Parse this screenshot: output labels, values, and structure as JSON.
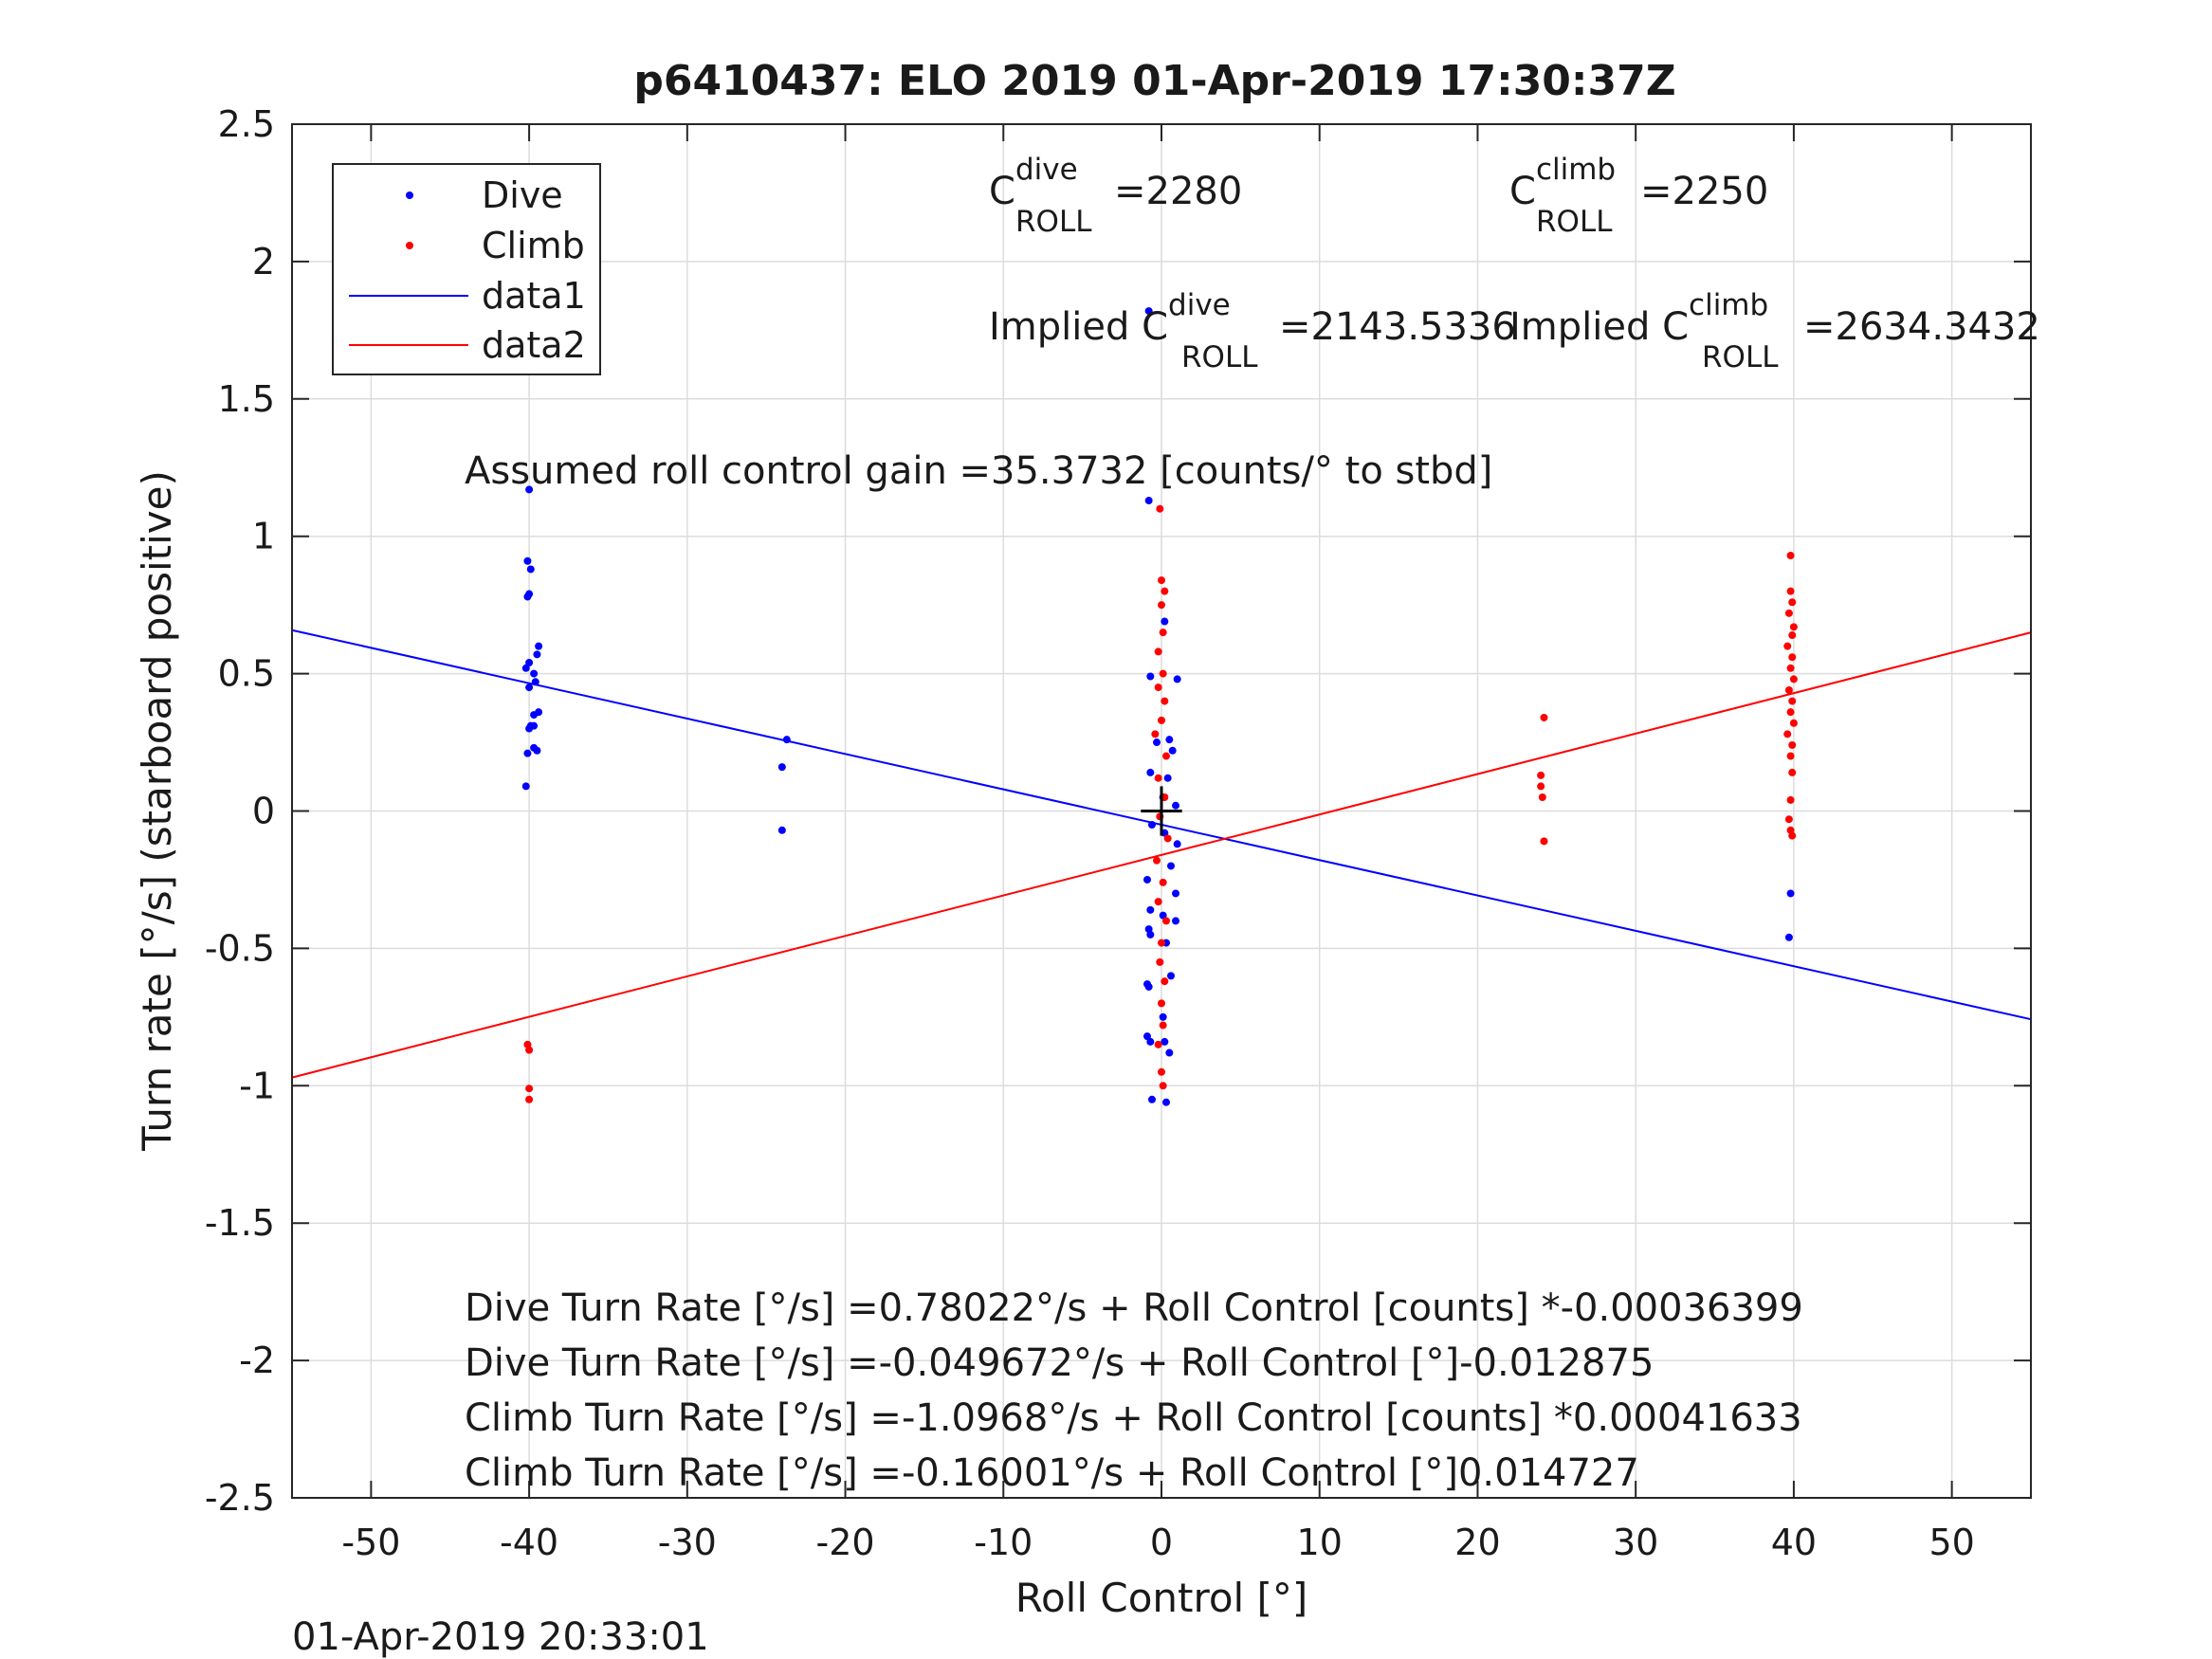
{
  "chart_data": {
    "type": "scatter",
    "title": "p6410437: ELO 2019 01-Apr-2019 17:30:37Z",
    "xlabel": "Roll Control [°]",
    "ylabel": "Turn rate [°/s] (starboard positive)",
    "xlim": [
      -55,
      55
    ],
    "ylim": [
      -2.5,
      2.5
    ],
    "x_ticks": [
      -50,
      -40,
      -30,
      -20,
      -10,
      0,
      10,
      20,
      30,
      40,
      50
    ],
    "y_ticks": [
      -2.5,
      -2,
      -1.5,
      -1,
      -0.5,
      0,
      0.5,
      1,
      1.5,
      2,
      2.5
    ],
    "grid": true,
    "legend_position": "top-left",
    "timestamp": "01-Apr-2019 20:33:01",
    "colors": {
      "dive": "#0000ff",
      "climb": "#ff0000",
      "axis": "#262626",
      "grid": "#dcdcdc",
      "marker": "#000000"
    },
    "series": [
      {
        "name": "Dive",
        "style": "points",
        "points": [
          [
            -40.0,
            1.17
          ],
          [
            -40.1,
            0.91
          ],
          [
            -39.9,
            0.88
          ],
          [
            -40.0,
            0.79
          ],
          [
            -40.1,
            0.78
          ],
          [
            -39.4,
            0.6
          ],
          [
            -39.5,
            0.57
          ],
          [
            -40.0,
            0.54
          ],
          [
            -40.2,
            0.52
          ],
          [
            -39.7,
            0.5
          ],
          [
            -39.6,
            0.47
          ],
          [
            -40.0,
            0.45
          ],
          [
            -39.4,
            0.36
          ],
          [
            -39.7,
            0.35
          ],
          [
            -39.9,
            0.31
          ],
          [
            -39.7,
            0.31
          ],
          [
            -40.0,
            0.3
          ],
          [
            -39.5,
            0.22
          ],
          [
            -40.1,
            0.21
          ],
          [
            -39.7,
            0.23
          ],
          [
            -40.2,
            0.09
          ],
          [
            -23.7,
            0.26
          ],
          [
            -24.0,
            0.16
          ],
          [
            -24.0,
            -0.07
          ],
          [
            -0.8,
            1.82
          ],
          [
            -0.8,
            1.13
          ],
          [
            0.2,
            0.69
          ],
          [
            -0.7,
            0.49
          ],
          [
            1.0,
            0.48
          ],
          [
            -0.3,
            0.25
          ],
          [
            0.5,
            0.26
          ],
          [
            0.7,
            0.22
          ],
          [
            -0.7,
            0.14
          ],
          [
            0.4,
            0.12
          ],
          [
            0.1,
            0.05
          ],
          [
            0.9,
            0.02
          ],
          [
            -0.6,
            -0.05
          ],
          [
            0.2,
            -0.08
          ],
          [
            1.0,
            -0.12
          ],
          [
            -0.9,
            -0.25
          ],
          [
            0.6,
            -0.2
          ],
          [
            0.9,
            -0.3
          ],
          [
            -0.7,
            -0.36
          ],
          [
            0.1,
            -0.38
          ],
          [
            -0.8,
            -0.43
          ],
          [
            -0.7,
            -0.45
          ],
          [
            0.9,
            -0.4
          ],
          [
            0.3,
            -0.48
          ],
          [
            -0.9,
            -0.63
          ],
          [
            -0.8,
            -0.64
          ],
          [
            0.6,
            -0.6
          ],
          [
            0.1,
            -0.75
          ],
          [
            -0.9,
            -0.82
          ],
          [
            -0.7,
            -0.84
          ],
          [
            0.2,
            -0.84
          ],
          [
            0.5,
            -0.88
          ],
          [
            -0.6,
            -1.05
          ],
          [
            0.3,
            -1.06
          ],
          [
            39.8,
            -0.3
          ],
          [
            39.7,
            -0.46
          ]
        ]
      },
      {
        "name": "Climb",
        "style": "points",
        "points": [
          [
            -40.1,
            -0.85
          ],
          [
            -40.0,
            -0.87
          ],
          [
            -40.0,
            -1.01
          ],
          [
            -40.0,
            -1.05
          ],
          [
            24.2,
            0.34
          ],
          [
            24.0,
            0.13
          ],
          [
            24.0,
            0.09
          ],
          [
            24.1,
            0.05
          ],
          [
            24.2,
            -0.11
          ],
          [
            -0.1,
            1.1
          ],
          [
            0.0,
            0.84
          ],
          [
            0.2,
            0.8
          ],
          [
            0.0,
            0.75
          ],
          [
            0.1,
            0.65
          ],
          [
            -0.2,
            0.58
          ],
          [
            0.1,
            0.5
          ],
          [
            -0.2,
            0.45
          ],
          [
            0.2,
            0.4
          ],
          [
            0.0,
            0.33
          ],
          [
            -0.4,
            0.28
          ],
          [
            0.3,
            0.2
          ],
          [
            -0.2,
            0.12
          ],
          [
            0.2,
            0.05
          ],
          [
            -0.1,
            -0.02
          ],
          [
            0.4,
            -0.1
          ],
          [
            -0.3,
            -0.18
          ],
          [
            0.1,
            -0.26
          ],
          [
            -0.2,
            -0.33
          ],
          [
            0.3,
            -0.4
          ],
          [
            0.0,
            -0.48
          ],
          [
            -0.1,
            -0.55
          ],
          [
            0.2,
            -0.62
          ],
          [
            0.0,
            -0.7
          ],
          [
            0.1,
            -0.78
          ],
          [
            -0.2,
            -0.85
          ],
          [
            0.0,
            -0.95
          ],
          [
            0.1,
            -1.0
          ],
          [
            39.8,
            0.93
          ],
          [
            39.8,
            0.8
          ],
          [
            39.9,
            0.76
          ],
          [
            39.7,
            0.72
          ],
          [
            40.0,
            0.67
          ],
          [
            39.9,
            0.64
          ],
          [
            39.6,
            0.6
          ],
          [
            39.9,
            0.56
          ],
          [
            39.8,
            0.52
          ],
          [
            40.0,
            0.48
          ],
          [
            39.7,
            0.44
          ],
          [
            39.9,
            0.4
          ],
          [
            39.8,
            0.36
          ],
          [
            40.0,
            0.32
          ],
          [
            39.6,
            0.28
          ],
          [
            39.9,
            0.24
          ],
          [
            39.8,
            0.2
          ],
          [
            39.9,
            0.14
          ],
          [
            39.8,
            0.04
          ],
          [
            39.7,
            -0.03
          ],
          [
            39.8,
            -0.07
          ],
          [
            39.9,
            -0.09
          ]
        ]
      },
      {
        "name": "data1",
        "style": "line",
        "points": [
          [
            -55,
            0.6583
          ],
          [
            55,
            -0.758
          ]
        ]
      },
      {
        "name": "data2",
        "style": "line",
        "points": [
          [
            -55,
            -0.97
          ],
          [
            55,
            0.65
          ]
        ]
      }
    ],
    "annotations": {
      "c_dive_label": "C",
      "c_dive_sup": "dive",
      "c_dive_sub": "ROLL",
      "c_dive_value": "=2280",
      "c_climb_label": "C",
      "c_climb_sup": "climb",
      "c_climb_sub": "ROLL",
      "c_climb_value": "=2250",
      "implied_dive_label": "Implied C",
      "implied_dive_sup": "dive",
      "implied_dive_sub": "ROLL",
      "implied_dive_value": "=2143.5336",
      "implied_climb_label": "Implied C",
      "implied_climb_sup": "climb",
      "implied_climb_sub": "ROLL",
      "implied_climb_value": "=2634.3432",
      "assumed_gain": "Assumed roll control gain =35.3732 [counts/° to stbd]",
      "eq1": "Dive Turn Rate [°/s] =0.78022°/s + Roll Control [counts] *-0.00036399",
      "eq2": "Dive Turn Rate [°/s] =-0.049672°/s + Roll Control [°]-0.012875",
      "eq3": "Climb Turn Rate [°/s] =-1.0968°/s + Roll Control [counts] *0.00041633",
      "eq4": "Climb Turn Rate [°/s] =-0.16001°/s + Roll Control [°]0.014727"
    }
  }
}
